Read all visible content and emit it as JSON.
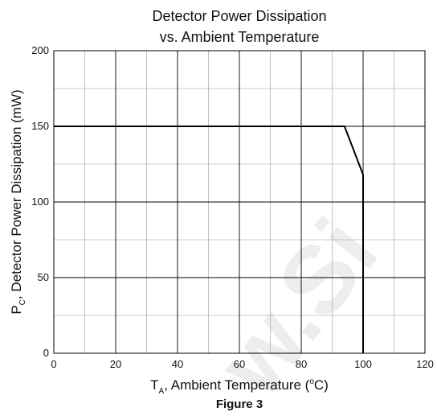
{
  "chart_data": {
    "type": "line",
    "title_line1": "Detector Power Dissipation",
    "title_line2": "vs. Ambient Temperature",
    "xlabel_main": "T",
    "xlabel_sub": "A",
    "xlabel_rest": ", Ambient Temperature (",
    "xlabel_sup": "o",
    "xlabel_end": "C)",
    "ylabel_main": "P",
    "ylabel_sub": "C",
    "ylabel_rest": ", Detector Power Dissipation (mW)",
    "xlim": [
      0,
      120
    ],
    "ylim": [
      0,
      200
    ],
    "xticks": [
      0,
      20,
      40,
      60,
      80,
      100,
      120
    ],
    "yticks": [
      0,
      50,
      100,
      150,
      200
    ],
    "grid": true,
    "series": [
      {
        "x": [
          0,
          94,
          100,
          100
        ],
        "y": [
          150,
          150,
          118,
          0
        ]
      }
    ],
    "caption": "Figure 3",
    "watermark": "w.Si"
  }
}
